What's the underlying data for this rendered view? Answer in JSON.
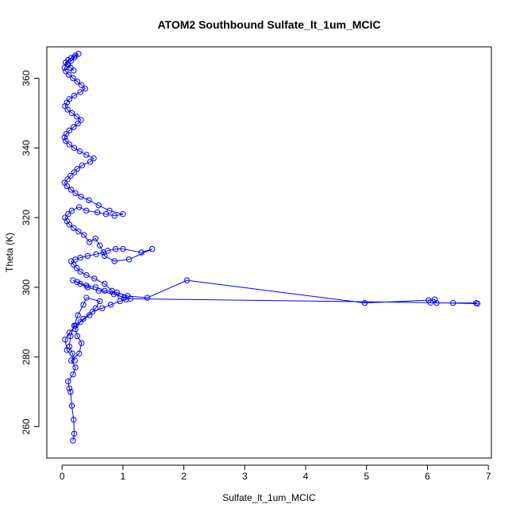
{
  "chart_data": {
    "type": "line",
    "title": "ATOM2 Southbound Sulfate_lt_1um_MCIC",
    "xlabel": "Sulfate_lt_1um_MCIC",
    "ylabel": "Theta (K)",
    "xlim": [
      -0.25,
      7.05
    ],
    "ylim": [
      251,
      369
    ],
    "xticks": [
      0,
      1,
      2,
      3,
      4,
      5,
      6,
      7
    ],
    "yticks": [
      260,
      280,
      300,
      320,
      340,
      360
    ],
    "grid": false,
    "colors": {
      "series": "#0000ff",
      "axis": "#000000",
      "background": "#ffffff"
    },
    "series": [
      {
        "x": [
          0.18,
          0.2,
          0.19,
          0.16,
          0.14,
          0.12,
          0.1,
          0.18,
          0.22,
          0.15,
          0.28,
          0.32,
          0.25,
          0.22,
          0.3,
          0.45,
          0.55,
          0.62,
          0.4,
          0.35,
          0.26,
          0.2,
          0.14,
          0.12,
          0.17,
          0.21,
          0.08,
          0.05,
          0.12,
          0.22,
          0.35,
          0.5,
          0.66,
          0.8,
          0.95,
          1.05,
          1.02,
          0.85,
          0.6,
          0.42,
          0.3,
          0.18,
          0.25,
          0.4,
          0.55,
          0.7,
          0.9,
          1.08,
          1.4,
          2.05,
          4.97,
          6.02,
          6.12,
          6.15,
          6.42,
          6.8,
          6.82,
          6.05,
          1.12,
          0.96,
          0.82,
          0.7,
          0.53,
          0.4,
          0.3,
          0.24,
          0.19,
          0.15,
          0.22,
          0.3,
          0.42,
          0.56,
          0.68,
          0.75,
          0.88,
          1.0,
          1.3,
          1.48,
          1.1,
          0.86,
          0.7,
          0.62,
          0.55,
          0.45,
          0.36,
          0.27,
          0.19,
          0.12,
          0.08,
          0.05,
          0.1,
          0.16,
          0.28,
          0.4,
          0.58,
          0.72,
          0.86,
          1.0,
          0.78,
          0.6,
          0.44,
          0.31,
          0.22,
          0.15,
          0.08,
          0.04,
          0.09,
          0.14,
          0.2,
          0.25,
          0.33,
          0.46,
          0.52,
          0.4,
          0.29,
          0.2,
          0.12,
          0.06,
          0.04,
          0.07,
          0.12,
          0.19,
          0.26,
          0.31,
          0.24,
          0.16,
          0.09,
          0.05,
          0.08,
          0.12,
          0.2,
          0.3,
          0.38,
          0.32,
          0.25,
          0.18,
          0.11,
          0.06,
          0.04,
          0.09,
          0.15,
          0.2,
          0.27,
          0.22,
          0.15,
          0.1,
          0.06,
          0.1,
          0.14,
          0.19
        ],
        "y": [
          256,
          258,
          262,
          266,
          270,
          271,
          273,
          275,
          277,
          279,
          281,
          284,
          286,
          288,
          290,
          292,
          294,
          296,
          297,
          295,
          292,
          289,
          286,
          283,
          281,
          279,
          282,
          285,
          287,
          289,
          291,
          293,
          294,
          295,
          296,
          296.5,
          297,
          298,
          299,
          300,
          301,
          302,
          301.5,
          300.5,
          300,
          299,
          298.5,
          297.5,
          297,
          302,
          295.5,
          296.3,
          296.5,
          295.5,
          295.5,
          295.5,
          295.3,
          295.6,
          296.7,
          297.4,
          299,
          301,
          302.5,
          303.5,
          304.5,
          305.5,
          306.5,
          307.5,
          308,
          308.5,
          309,
          309.5,
          310,
          310.5,
          311,
          311,
          310,
          311,
          308,
          307.5,
          309,
          312,
          314,
          313,
          315,
          316,
          317,
          318,
          319,
          320,
          321,
          322,
          323,
          322,
          321.5,
          321,
          320.5,
          321,
          322,
          323.5,
          325,
          326,
          327,
          328,
          329,
          330,
          331,
          332,
          333,
          334,
          335,
          336,
          337,
          338,
          339,
          340,
          341,
          342,
          343,
          344,
          345,
          346,
          347,
          348,
          349,
          350,
          351,
          352,
          353,
          354,
          355,
          356,
          357,
          358,
          359,
          360,
          361,
          362,
          363,
          364,
          365,
          366,
          367,
          366.5,
          365.8,
          365.2,
          364.5,
          363.8,
          363,
          362.2
        ]
      }
    ]
  }
}
